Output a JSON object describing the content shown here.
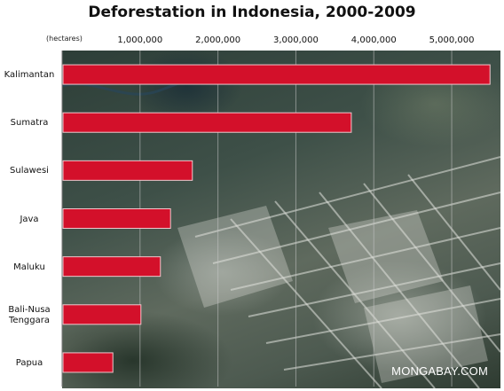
{
  "title": "Deforestation in Indonesia, 2000-2009",
  "unit_label": "(hectares)",
  "watermark": "MONGABAY.COM",
  "chart_data": {
    "type": "bar",
    "orientation": "horizontal",
    "title": "Deforestation in Indonesia, 2000-2009",
    "xlabel": "(hectares)",
    "ylabel": "",
    "categories": [
      "Kalimantan",
      "Sumatra",
      "Sulawesi",
      "Java",
      "Maluku",
      "Bali-Nusa Tenggara",
      "Papua"
    ],
    "category_lines": [
      [
        "Kalimantan"
      ],
      [
        "Sumatra"
      ],
      [
        "Sulawesi"
      ],
      [
        "Java"
      ],
      [
        "Maluku"
      ],
      [
        "Bali-Nusa",
        "Tenggara"
      ],
      [
        "Papua"
      ]
    ],
    "values": [
      5480000,
      3700000,
      1660000,
      1380000,
      1250000,
      1000000,
      640000
    ],
    "xlim": [
      0,
      5580000
    ],
    "xticks": [
      1000000,
      2000000,
      3000000,
      4000000,
      5000000
    ],
    "xtick_labels": [
      "1,000,000",
      "2,000,000",
      "3,000,000",
      "4,000,000",
      "5,000,000"
    ],
    "grid": true,
    "bar_color": "#d3102a",
    "background": "aerial photograph of cleared land"
  }
}
